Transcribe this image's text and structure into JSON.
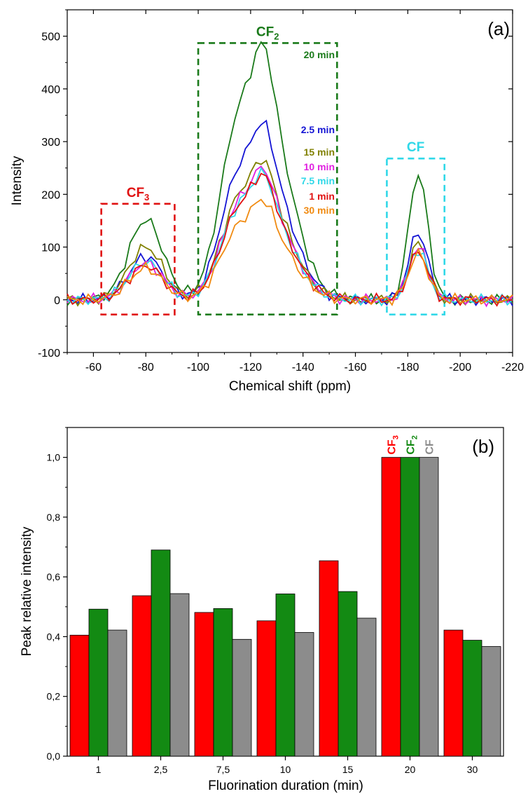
{
  "chart_data": [
    {
      "panel": "(a)",
      "type": "line",
      "xlabel": "Chemical shift (ppm)",
      "ylabel": "Intensity",
      "xlim": [
        -50,
        -220
      ],
      "ylim": [
        -100,
        550
      ],
      "x_ticks": [
        "-60",
        "-80",
        "-100",
        "-120",
        "-140",
        "-160",
        "-180",
        "-200",
        "-220"
      ],
      "y_ticks": [
        "-100",
        "0",
        "100",
        "200",
        "300",
        "400",
        "500"
      ],
      "grid": false,
      "x_step": 2,
      "series": [
        {
          "name": "20 min",
          "color": "#1a7a1a",
          "peaks": [
            {
              "x": -80,
              "h": 152
            },
            {
              "x": -125,
              "h": 465
            },
            {
              "x": -184,
              "h": 240
            }
          ]
        },
        {
          "name": "2.5 min",
          "color": "#1414d4",
          "peaks": [
            {
              "x": -80,
              "h": 82
            },
            {
              "x": -125,
              "h": 322
            },
            {
              "x": -184,
              "h": 128
            }
          ]
        },
        {
          "name": "15 min",
          "color": "#808000",
          "peaks": [
            {
              "x": -80,
              "h": 100
            },
            {
              "x": -125,
              "h": 255
            },
            {
              "x": -184,
              "h": 108
            }
          ]
        },
        {
          "name": "10 min",
          "color": "#e020e0",
          "peaks": [
            {
              "x": -80,
              "h": 70
            },
            {
              "x": -125,
              "h": 240
            },
            {
              "x": -184,
              "h": 100
            }
          ]
        },
        {
          "name": "7.5 min",
          "color": "#30d8e8",
          "peaks": [
            {
              "x": -80,
              "h": 72
            },
            {
              "x": -125,
              "h": 230
            },
            {
              "x": -184,
              "h": 95
            }
          ]
        },
        {
          "name": "1 min",
          "color": "#e01010",
          "peaks": [
            {
              "x": -80,
              "h": 65
            },
            {
              "x": -125,
              "h": 228
            },
            {
              "x": -184,
              "h": 92
            }
          ]
        },
        {
          "name": "30 min",
          "color": "#f08a10",
          "peaks": [
            {
              "x": -80,
              "h": 60
            },
            {
              "x": -125,
              "h": 182
            },
            {
              "x": -184,
              "h": 88
            }
          ]
        }
      ],
      "regions": [
        {
          "label": "CF",
          "sub": "3",
          "color": "#e01010",
          "x0": -63,
          "x1": -91,
          "y0": -28,
          "y1": 182
        },
        {
          "label": "CF",
          "sub": "2",
          "color": "#1a7a1a",
          "x0": -100,
          "x1": -153,
          "y0": -28,
          "y1": 487
        },
        {
          "label": "CF",
          "sub": "",
          "color": "#30d8e8",
          "x0": -172,
          "x1": -194,
          "y0": -28,
          "y1": 268
        }
      ]
    },
    {
      "panel": "(b)",
      "type": "bar",
      "xlabel": "Fluorination duration (min)",
      "ylabel": "Peak relative intensity",
      "ylim": [
        0,
        1.1
      ],
      "y_ticks": [
        "0,0",
        "0,2",
        "0,4",
        "0,6",
        "0,8",
        "1,0"
      ],
      "categories": [
        "1",
        "2,5",
        "7,5",
        "10",
        "15",
        "20",
        "30"
      ],
      "series": [
        {
          "name": "CF3",
          "label_main": "CF",
          "label_sub": "3",
          "color": "#ff0000",
          "values": [
            0.405,
            0.537,
            0.481,
            0.453,
            0.654,
            1.0,
            0.422
          ]
        },
        {
          "name": "CF2",
          "label_main": "CF",
          "label_sub": "2",
          "color": "#138a13",
          "values": [
            0.492,
            0.69,
            0.494,
            0.543,
            0.551,
            1.0,
            0.388
          ]
        },
        {
          "name": "CF",
          "label_main": "CF",
          "label_sub": "",
          "color": "#8c8c8c",
          "values": [
            0.422,
            0.544,
            0.391,
            0.414,
            0.462,
            1.0,
            0.367
          ]
        }
      ],
      "legend": "vertical labels above 20 min bars"
    }
  ]
}
